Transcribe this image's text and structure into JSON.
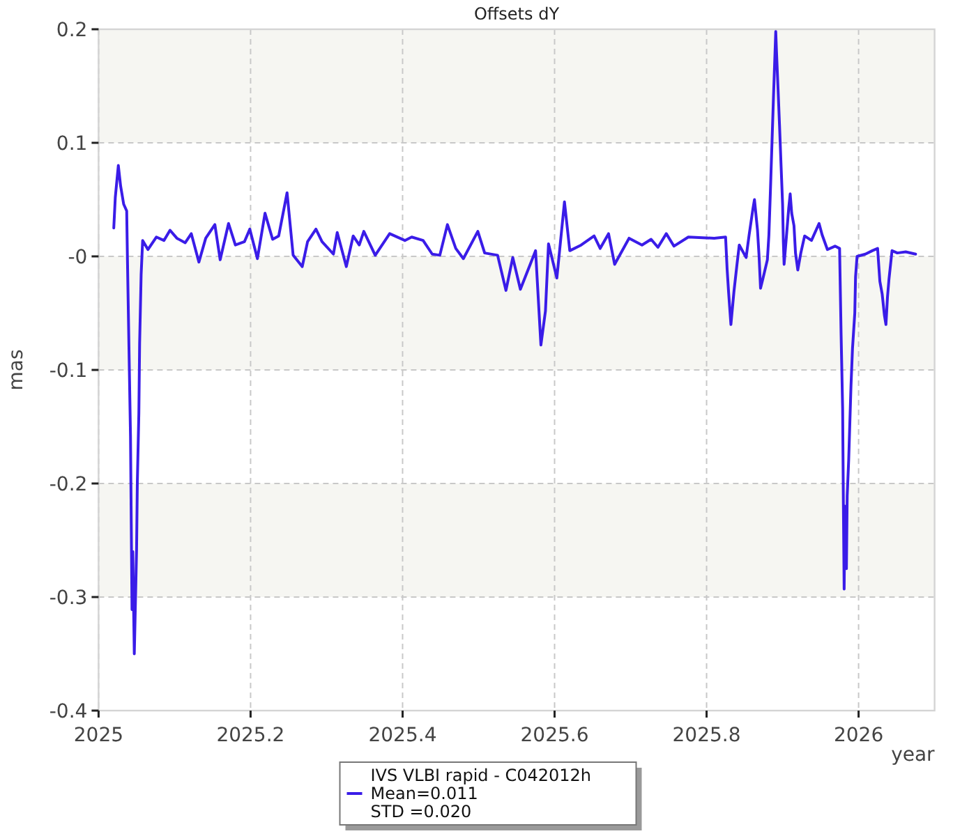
{
  "chart_data": {
    "type": "line",
    "title": "Offsets dY",
    "xlabel": "year",
    "ylabel": "mas",
    "xlim": [
      2025,
      2026.1
    ],
    "xticks": [
      2025,
      2025.2,
      2025.4,
      2025.6,
      2025.8,
      2026
    ],
    "ylim": [
      -0.4,
      0.2
    ],
    "yticks": [
      0.2,
      0.1,
      {
        "value": 0,
        "label": "-0"
      },
      -0.1,
      -0.2,
      -0.3,
      -0.4
    ],
    "grid": true,
    "legend": "bottom",
    "bands": [
      {
        "axis": "y",
        "from": 0.1,
        "to": 0.2,
        "color": "#f6f6f2"
      },
      {
        "axis": "y",
        "from": -0.1,
        "to": 0,
        "color": "#f6f6f2"
      },
      {
        "axis": "y",
        "from": -0.3,
        "to": -0.2,
        "color": "#f6f6f2"
      }
    ],
    "annotations": [
      "Mean=0.011",
      "STD =0.020"
    ],
    "series": [
      {
        "name": "IVS VLBI rapid - C042012h",
        "color": "#3a1ce8",
        "x": [
          2025.02,
          2025.022,
          2025.026,
          2025.029,
          2025.033,
          2025.037,
          2025.038,
          2025.04,
          2025.042,
          2025.043,
          2025.044,
          2025.045,
          2025.047,
          2025.048,
          2025.05,
          2025.051,
          2025.053,
          2025.054,
          2025.056,
          2025.058,
          2025.065,
          2025.076,
          2025.086,
          2025.094,
          2025.103,
          2025.114,
          2025.122,
          2025.132,
          2025.141,
          2025.153,
          2025.16,
          2025.171,
          2025.18,
          2025.192,
          2025.199,
          2025.209,
          2025.219,
          2025.229,
          2025.237,
          2025.248,
          2025.256,
          2025.268,
          2025.275,
          2025.286,
          2025.294,
          2025.309,
          2025.314,
          2025.326,
          2025.335,
          2025.343,
          2025.349,
          2025.364,
          2025.383,
          2025.403,
          2025.412,
          2025.427,
          2025.439,
          2025.449,
          2025.459,
          2025.47,
          2025.48,
          2025.499,
          2025.508,
          2025.525,
          2025.536,
          2025.545,
          2025.555,
          2025.575,
          2025.582,
          2025.588,
          2025.592,
          2025.603,
          2025.613,
          2025.62,
          2025.635,
          2025.652,
          2025.66,
          2025.671,
          2025.679,
          2025.698,
          2025.715,
          2025.727,
          2025.736,
          2025.747,
          2025.757,
          2025.776,
          2025.81,
          2025.825,
          2025.827,
          2025.829,
          2025.832,
          2025.836,
          2025.84,
          2025.843,
          2025.852,
          2025.856,
          2025.861,
          2025.863,
          2025.867,
          2025.869,
          2025.871,
          2025.874,
          2025.88,
          2025.882,
          2025.884,
          2025.886,
          2025.888,
          2025.891,
          2025.892,
          2025.894,
          2025.896,
          2025.898,
          2025.9,
          2025.901,
          2025.902,
          2025.905,
          2025.908,
          2025.91,
          2025.912,
          2025.915,
          2025.917,
          2025.92,
          2025.924,
          2025.929,
          2025.938,
          2025.948,
          2025.952,
          2025.959,
          2025.969,
          2025.975,
          2025.977,
          2025.979,
          2025.98,
          2025.981,
          2025.982,
          2025.984,
          2025.985,
          2025.987,
          2025.99,
          2025.992,
          2025.995,
          2025.996,
          2025.998,
          2026.009,
          2026.018,
          2026.025,
          2026.028,
          2026.031,
          2026.034,
          2026.036,
          2026.038,
          2026.04,
          2026.044,
          2026.051,
          2026.062,
          2026.075
        ],
        "values": [
          0.025,
          0.052,
          0.08,
          0.062,
          0.046,
          0.04,
          -0.003,
          -0.081,
          -0.158,
          -0.236,
          -0.311,
          -0.26,
          -0.35,
          -0.32,
          -0.258,
          -0.199,
          -0.138,
          -0.077,
          -0.016,
          0.014,
          0.006,
          0.017,
          0.014,
          0.023,
          0.016,
          0.012,
          0.02,
          -0.005,
          0.016,
          0.028,
          -0.003,
          0.029,
          0.01,
          0.013,
          0.024,
          -0.002,
          0.038,
          0.015,
          0.018,
          0.056,
          0.001,
          -0.009,
          0.013,
          0.024,
          0.013,
          0.002,
          0.021,
          -0.009,
          0.018,
          0.01,
          0.022,
          0.001,
          0.02,
          0.014,
          0.017,
          0.014,
          0.002,
          0.001,
          0.028,
          0.007,
          -0.002,
          0.022,
          0.003,
          0.001,
          -0.03,
          -0.001,
          -0.029,
          0.005,
          -0.078,
          -0.048,
          0.011,
          -0.019,
          0.048,
          0.005,
          0.01,
          0.018,
          0.007,
          0.02,
          -0.007,
          0.016,
          0.01,
          0.015,
          0.008,
          0.02,
          0.009,
          0.017,
          0.016,
          0.017,
          -0.011,
          -0.032,
          -0.06,
          -0.031,
          -0.007,
          0.01,
          -0.001,
          0.019,
          0.042,
          0.05,
          0.023,
          0.001,
          -0.028,
          -0.02,
          -0.003,
          0.019,
          0.058,
          0.099,
          0.14,
          0.198,
          0.18,
          0.148,
          0.115,
          0.08,
          0.046,
          0.013,
          -0.007,
          0.017,
          0.042,
          0.055,
          0.038,
          0.027,
          0.003,
          -0.012,
          0.003,
          0.018,
          0.014,
          0.029,
          0.019,
          0.006,
          0.009,
          0.007,
          -0.069,
          -0.134,
          -0.218,
          -0.293,
          -0.22,
          -0.275,
          -0.211,
          -0.179,
          -0.114,
          -0.081,
          -0.05,
          -0.018,
          0.0,
          0.002,
          0.005,
          0.007,
          -0.022,
          -0.033,
          -0.052,
          -0.06,
          -0.036,
          -0.02,
          0.005,
          0.003,
          0.004,
          0.002
        ]
      }
    ]
  }
}
